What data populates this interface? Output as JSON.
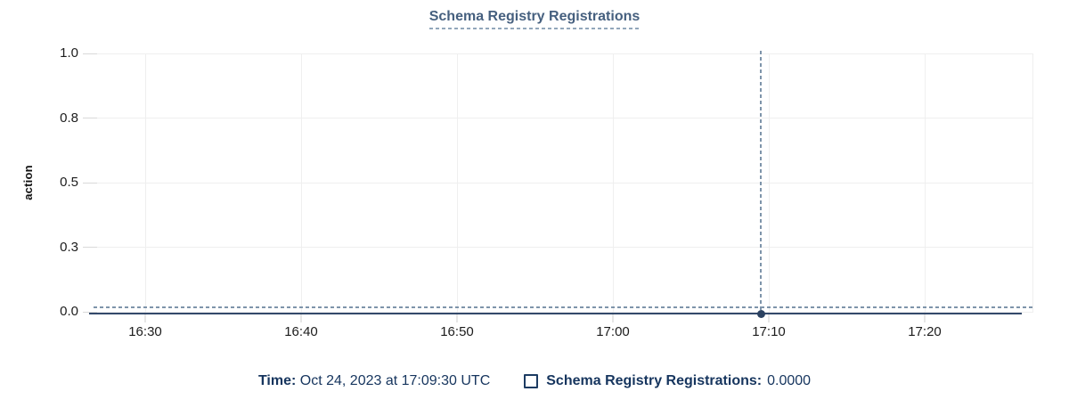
{
  "title": "Schema Registry Registrations",
  "chart_data": {
    "type": "line",
    "title": "Schema Registry Registrations",
    "xlabel": "",
    "ylabel": "action",
    "ylim": [
      0,
      1
    ],
    "grid": true,
    "legend_position": "bottom",
    "x_ticks": [
      "16:30",
      "16:40",
      "16:50",
      "17:00",
      "17:10",
      "17:20"
    ],
    "y_ticks": [
      {
        "label": "1.0",
        "value": 1.0
      },
      {
        "label": "0.8",
        "value": 0.75
      },
      {
        "label": "0.5",
        "value": 0.5
      },
      {
        "label": "0.3",
        "value": 0.25
      },
      {
        "label": "0.0",
        "value": 0.0
      }
    ],
    "series": [
      {
        "name": "Schema Registry Registrations",
        "constant_value": 0,
        "points": [
          [
            "16:30",
            0
          ],
          [
            "16:40",
            0
          ],
          [
            "16:50",
            0
          ],
          [
            "17:00",
            0
          ],
          [
            "17:10",
            0
          ],
          [
            "17:20",
            0
          ]
        ]
      }
    ],
    "crosshair": {
      "time": "17:09:30",
      "value": 0.0,
      "first_tick_time": "16:30",
      "minutes_per_tick": 10
    }
  },
  "tooltip": {
    "time_label": "Time:",
    "time_value": "Oct 24, 2023 at 17:09:30 UTC",
    "series_label": "Schema Registry Registrations:",
    "series_value": "0.0000"
  },
  "colors": {
    "title": "#46607f",
    "title_underline": "#92a7bb",
    "legend_text": "#16355e",
    "series_line": "#33496b",
    "marker": "#2b4160",
    "crosshair": "#7e94aa",
    "gridline": "#efefef",
    "tick": "#d9d9d9",
    "axis_text": "#1c1c1c"
  }
}
